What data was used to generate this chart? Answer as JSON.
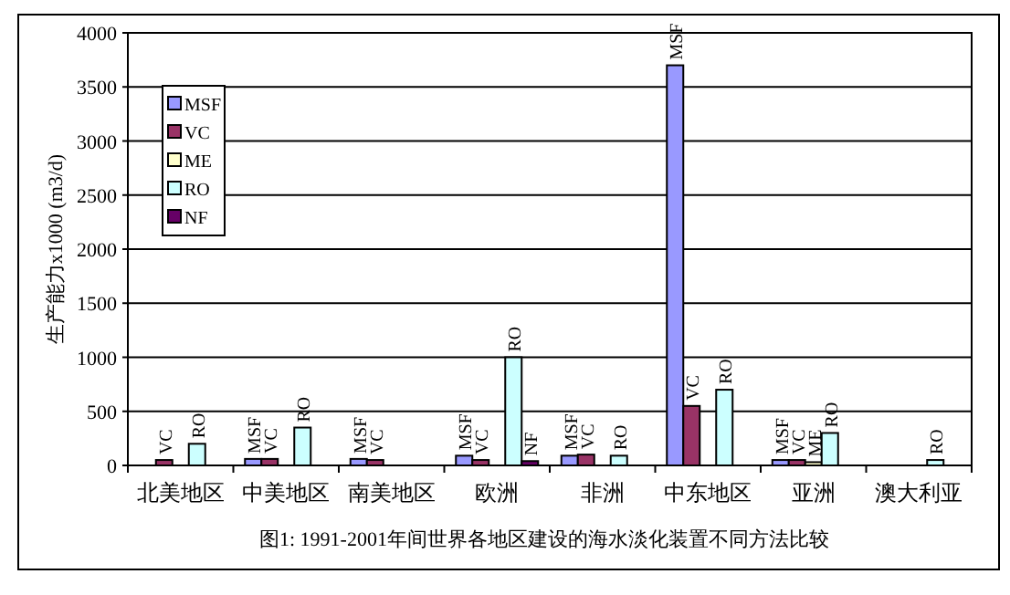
{
  "chart_data": {
    "type": "bar",
    "ylabel": "生产能力x1000 (m3/d)",
    "annotations": [
      "图1: 1991-2001年间世界各地区建设的海水淡化装置不同方法比较"
    ],
    "categories": [
      "北美地区",
      "中美地区",
      "南美地区",
      "欧洲",
      "非洲",
      "中东地区",
      "亚洲",
      "澳大利亚"
    ],
    "series": [
      {
        "name": "MSF",
        "color": "#9999ff",
        "values": [
          null,
          60,
          60,
          90,
          90,
          3700,
          50,
          null
        ],
        "value_labels": [
          null,
          "MSF",
          "MSF",
          "MSF",
          "MSF",
          "MSF",
          "MSF",
          null
        ]
      },
      {
        "name": "VC",
        "color": "#993366",
        "values": [
          50,
          60,
          50,
          50,
          100,
          550,
          50,
          null
        ],
        "value_labels": [
          "VC",
          "VC",
          "VC",
          "VC",
          "VC",
          "VC",
          "VC",
          null
        ]
      },
      {
        "name": "ME",
        "color": "#ffffcc",
        "values": [
          null,
          null,
          null,
          null,
          null,
          null,
          30,
          null
        ],
        "value_labels": [
          null,
          null,
          null,
          null,
          null,
          null,
          "ME",
          null
        ]
      },
      {
        "name": "RO",
        "color": "#ccffff",
        "values": [
          200,
          350,
          null,
          1000,
          90,
          700,
          300,
          50
        ],
        "value_labels": [
          "RO",
          "RO",
          null,
          "RO",
          "RO",
          "RO",
          "RO",
          "RO"
        ]
      },
      {
        "name": "NF",
        "color": "#660066",
        "values": [
          null,
          null,
          null,
          40,
          null,
          null,
          null,
          null
        ],
        "value_labels": [
          null,
          null,
          null,
          "NF",
          null,
          null,
          null,
          null
        ]
      }
    ],
    "ylim": [
      0,
      4000
    ],
    "yticks": [
      0,
      500,
      1000,
      1500,
      2000,
      2500,
      3000,
      3500,
      4000
    ],
    "grid": "y",
    "legend": "top left"
  }
}
